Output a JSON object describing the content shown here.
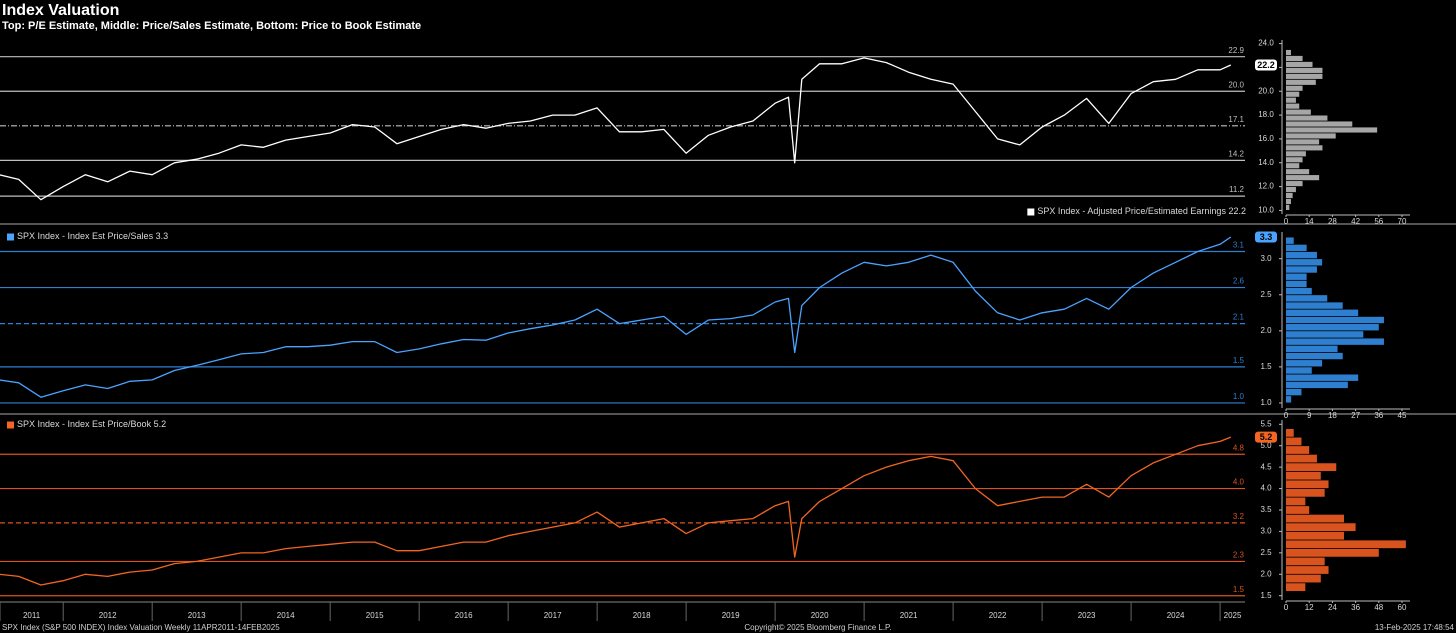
{
  "header": {
    "title": "Index Valuation",
    "subtitle": "Top: P/E Estimate, Middle: Price/Sales Estimate, Bottom: Price to Book Estimate"
  },
  "footer": {
    "left": "SPX Index (S&P 500 INDEX) Index Valuation  Weekly 11APR2011-14FEB2025",
    "center": "Copyright© 2025 Bloomberg Finance L.P.",
    "right": "13-Feb-2025 17:48:54"
  },
  "chart_data": [
    {
      "type": "line",
      "legend": "lower right",
      "line_color": "#bfbfbf",
      "xlim": [
        2011.29,
        2025.28
      ],
      "ylim": [
        9.7,
        24.3
      ],
      "yticks": [
        {
          "value": 10,
          "label": "10.0"
        },
        {
          "value": 12,
          "label": "12.0"
        },
        {
          "value": 14,
          "label": "14.0"
        },
        {
          "value": 16,
          "label": "16.0"
        },
        {
          "value": 18,
          "label": "18.0"
        },
        {
          "value": 20,
          "label": "20.0"
        },
        {
          "value": 22,
          "label": "22.0"
        },
        {
          "value": 24,
          "label": "24.0"
        }
      ],
      "mean": 17.1,
      "sd_lines": [
        22.9,
        {
          "value": 20,
          "label": "20.0"
        },
        14.2,
        11.2
      ],
      "x": [
        2011.28,
        2011.5,
        2011.75,
        2012.0,
        2012.25,
        2012.5,
        2012.75,
        2013.0,
        2013.25,
        2013.5,
        2013.75,
        2014.0,
        2014.25,
        2014.5,
        2014.75,
        2015.0,
        2015.25,
        2015.5,
        2015.75,
        2016.0,
        2016.25,
        2016.5,
        2016.75,
        2017.0,
        2017.25,
        2017.5,
        2017.75,
        2018.0,
        2018.25,
        2018.5,
        2018.75,
        2019.0,
        2019.25,
        2019.5,
        2019.75,
        2020.0,
        2020.15,
        2020.22,
        2020.3,
        2020.5,
        2020.75,
        2021.0,
        2021.25,
        2021.5,
        2021.75,
        2022.0,
        2022.25,
        2022.5,
        2022.75,
        2023.0,
        2023.25,
        2023.5,
        2023.75,
        2024.0,
        2024.25,
        2024.5,
        2024.75,
        2025.0,
        2025.12
      ],
      "series": [
        {
          "name": "SPX Index - Adjusted Price/Estimated Earnings",
          "color": "#ffffff",
          "values": [
            13.0,
            12.6,
            10.9,
            12.0,
            13.0,
            12.4,
            13.3,
            13.0,
            14.0,
            14.3,
            14.8,
            15.5,
            15.3,
            15.9,
            16.2,
            16.5,
            17.2,
            17.0,
            15.6,
            16.2,
            16.8,
            17.2,
            16.9,
            17.3,
            17.5,
            18.0,
            18.0,
            18.6,
            16.6,
            16.6,
            16.8,
            14.8,
            16.3,
            17.0,
            17.5,
            19.0,
            19.5,
            14.0,
            21.0,
            22.3,
            22.3,
            22.8,
            22.4,
            21.6,
            21.0,
            20.6,
            18.3,
            16.0,
            15.5,
            17.0,
            18.0,
            19.4,
            17.3,
            19.8,
            20.8,
            21.0,
            21.8,
            21.8,
            22.2
          ]
        }
      ],
      "histogram": {
        "color": "#a6a6a6",
        "xlim": [
          0,
          70
        ],
        "xticks": [
          0,
          14,
          28,
          42,
          56,
          70
        ],
        "bins": [
          10.0,
          10.5,
          11.0,
          11.5,
          12.0,
          12.5,
          13.0,
          13.5,
          14.0,
          14.5,
          15.0,
          15.5,
          16.0,
          16.5,
          17.0,
          17.5,
          18.0,
          18.5,
          19.0,
          19.5,
          20.0,
          20.5,
          21.0,
          21.5,
          22.0,
          22.5,
          23.0,
          23.5
        ],
        "counts": [
          2,
          3,
          4,
          6,
          10,
          20,
          14,
          8,
          10,
          12,
          22,
          20,
          30,
          55,
          40,
          25,
          15,
          8,
          6,
          8,
          10,
          18,
          22,
          22,
          16,
          10,
          3
        ]
      }
    },
    {
      "type": "line",
      "legend": "upper left",
      "line_color": "#2f7fd0",
      "xlim": [
        2011.29,
        2025.28
      ],
      "ylim": [
        0.93,
        3.37
      ],
      "yticks": [
        {
          "value": 1,
          "label": "1.0"
        },
        1.5,
        {
          "value": 2,
          "label": "2.0"
        },
        2.5,
        {
          "value": 3,
          "label": "3.0"
        }
      ],
      "mean": 2.1,
      "sd_lines": [
        3.1,
        2.6,
        1.5,
        {
          "value": 1,
          "label": "1.0"
        }
      ],
      "x": [
        2011.28,
        2011.5,
        2011.75,
        2012.0,
        2012.25,
        2012.5,
        2012.75,
        2013.0,
        2013.25,
        2013.5,
        2013.75,
        2014.0,
        2014.25,
        2014.5,
        2014.75,
        2015.0,
        2015.25,
        2015.5,
        2015.75,
        2016.0,
        2016.25,
        2016.5,
        2016.75,
        2017.0,
        2017.25,
        2017.5,
        2017.75,
        2018.0,
        2018.25,
        2018.5,
        2018.75,
        2019.0,
        2019.25,
        2019.5,
        2019.75,
        2020.0,
        2020.15,
        2020.22,
        2020.3,
        2020.5,
        2020.75,
        2021.0,
        2021.25,
        2021.5,
        2021.75,
        2022.0,
        2022.25,
        2022.5,
        2022.75,
        2023.0,
        2023.25,
        2023.5,
        2023.75,
        2024.0,
        2024.25,
        2024.5,
        2024.75,
        2025.0,
        2025.12
      ],
      "series": [
        {
          "name": "SPX Index - Index Est Price/Sales",
          "color": "#4aa3ff",
          "values": [
            1.32,
            1.28,
            1.08,
            1.17,
            1.25,
            1.2,
            1.3,
            1.32,
            1.45,
            1.52,
            1.6,
            1.68,
            1.7,
            1.78,
            1.78,
            1.8,
            1.85,
            1.85,
            1.7,
            1.75,
            1.82,
            1.88,
            1.87,
            1.97,
            2.03,
            2.08,
            2.15,
            2.3,
            2.1,
            2.15,
            2.2,
            1.95,
            2.15,
            2.17,
            2.22,
            2.4,
            2.45,
            1.7,
            2.35,
            2.6,
            2.8,
            2.95,
            2.9,
            2.95,
            3.05,
            2.95,
            2.55,
            2.25,
            2.15,
            2.25,
            2.3,
            2.45,
            2.3,
            2.6,
            2.8,
            2.95,
            3.1,
            3.2,
            3.3
          ]
        }
      ],
      "histogram": {
        "color": "#2f7fd0",
        "xlim": [
          0,
          45
        ],
        "xticks": [
          0,
          9,
          18,
          27,
          36,
          45
        ],
        "bins": [
          1.0,
          1.1,
          1.2,
          1.3,
          1.4,
          1.5,
          1.6,
          1.7,
          1.8,
          1.9,
          2.0,
          2.1,
          2.2,
          2.3,
          2.4,
          2.5,
          2.6,
          2.7,
          2.8,
          2.9,
          3.0,
          3.1,
          3.2,
          3.3
        ],
        "counts": [
          2,
          6,
          24,
          28,
          10,
          14,
          22,
          20,
          38,
          30,
          36,
          38,
          28,
          22,
          16,
          10,
          8,
          8,
          12,
          14,
          12,
          8,
          3
        ]
      }
    },
    {
      "type": "line",
      "legend": "upper left",
      "line_color": "#d9531e",
      "xlim": [
        2011.29,
        2025.28
      ],
      "ylim": [
        1.4,
        5.6
      ],
      "yticks": [
        1.5,
        {
          "value": 2,
          "label": "2.0"
        },
        2.5,
        {
          "value": 3,
          "label": "3.0"
        },
        3.5,
        {
          "value": 4,
          "label": "4.0"
        },
        4.5,
        {
          "value": 5,
          "label": "5.0"
        },
        5.5
      ],
      "mean": 3.2,
      "sd_lines": [
        4.8,
        {
          "value": 4,
          "label": "4.0"
        },
        2.3,
        1.5
      ],
      "xticks": [
        {
          "value": 2011.29,
          "label": "2011"
        },
        {
          "value": 2012,
          "label": "2012"
        },
        {
          "value": 2013,
          "label": "2013"
        },
        {
          "value": 2014,
          "label": "2014"
        },
        {
          "value": 2015,
          "label": "2015"
        },
        {
          "value": 2016,
          "label": "2016"
        },
        {
          "value": 2017,
          "label": "2017"
        },
        {
          "value": 2018,
          "label": "2018"
        },
        {
          "value": 2019,
          "label": "2019"
        },
        {
          "value": 2020,
          "label": "2020"
        },
        {
          "value": 2021,
          "label": "2021"
        },
        {
          "value": 2022,
          "label": "2022"
        },
        {
          "value": 2023,
          "label": "2023"
        },
        {
          "value": 2024,
          "label": "2024"
        },
        {
          "value": 2025,
          "label": "2025"
        }
      ],
      "x": [
        2011.28,
        2011.5,
        2011.75,
        2012.0,
        2012.25,
        2012.5,
        2012.75,
        2013.0,
        2013.25,
        2013.5,
        2013.75,
        2014.0,
        2014.25,
        2014.5,
        2014.75,
        2015.0,
        2015.25,
        2015.5,
        2015.75,
        2016.0,
        2016.25,
        2016.5,
        2016.75,
        2017.0,
        2017.25,
        2017.5,
        2017.75,
        2018.0,
        2018.25,
        2018.5,
        2018.75,
        2019.0,
        2019.25,
        2019.5,
        2019.75,
        2020.0,
        2020.15,
        2020.22,
        2020.3,
        2020.5,
        2020.75,
        2021.0,
        2021.25,
        2021.5,
        2021.75,
        2022.0,
        2022.25,
        2022.5,
        2022.75,
        2023.0,
        2023.25,
        2023.5,
        2023.75,
        2024.0,
        2024.25,
        2024.5,
        2024.75,
        2025.0,
        2025.12
      ],
      "series": [
        {
          "name": "SPX Index - Index Est Price/Book",
          "color": "#f26522",
          "values": [
            2.0,
            1.95,
            1.75,
            1.85,
            2.0,
            1.95,
            2.05,
            2.1,
            2.25,
            2.3,
            2.4,
            2.5,
            2.5,
            2.6,
            2.65,
            2.7,
            2.75,
            2.75,
            2.55,
            2.55,
            2.65,
            2.75,
            2.75,
            2.9,
            3.0,
            3.1,
            3.2,
            3.45,
            3.1,
            3.2,
            3.3,
            2.95,
            3.2,
            3.25,
            3.3,
            3.6,
            3.7,
            2.4,
            3.3,
            3.7,
            4.0,
            4.3,
            4.5,
            4.65,
            4.75,
            4.65,
            4.0,
            3.6,
            3.7,
            3.8,
            3.8,
            4.1,
            3.8,
            4.3,
            4.6,
            4.8,
            5.0,
            5.1,
            5.2
          ]
        }
      ],
      "histogram": {
        "color": "#d9531e",
        "xlim": [
          0,
          60
        ],
        "xticks": [
          0,
          12,
          24,
          36,
          48,
          60
        ],
        "bins": [
          1.6,
          1.8,
          2.0,
          2.2,
          2.4,
          2.6,
          2.8,
          3.0,
          3.2,
          3.4,
          3.6,
          3.8,
          4.0,
          4.2,
          4.4,
          4.6,
          4.8,
          5.0,
          5.2,
          5.4
        ],
        "counts": [
          10,
          18,
          22,
          20,
          48,
          62,
          30,
          36,
          30,
          12,
          10,
          20,
          22,
          18,
          26,
          16,
          12,
          8,
          4
        ]
      }
    }
  ]
}
